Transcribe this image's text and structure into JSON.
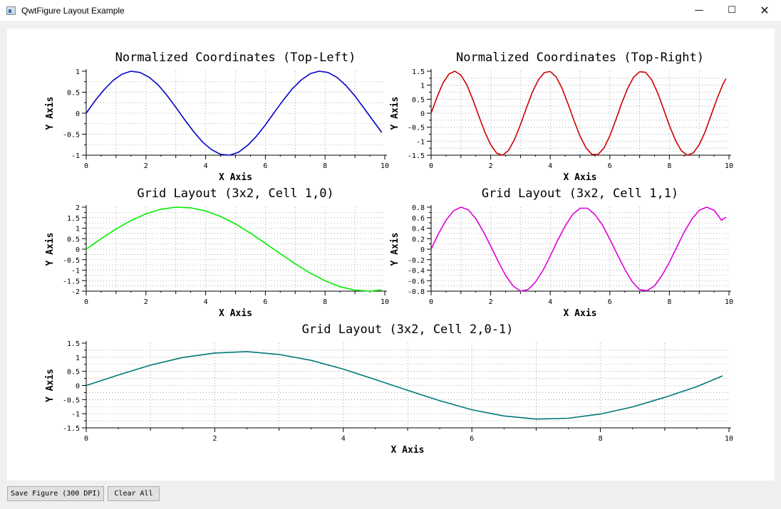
{
  "window": {
    "title": "QwtFigure Layout Example",
    "minimize_icon": "minimize-icon",
    "maximize_icon": "maximize-icon",
    "close_icon": "close-icon"
  },
  "buttons": {
    "save_label": "Save Figure (300 DPI)",
    "clear_label": "Clear All"
  },
  "chart_data": [
    {
      "type": "line",
      "title": "Normalized Coordinates (Top-Left)",
      "xlabel": "X Axis",
      "ylabel": "Y Axis",
      "xlim": [
        0,
        10
      ],
      "ylim": [
        -1,
        1
      ],
      "xticks": [
        "0",
        "2",
        "4",
        "6",
        "8",
        "10"
      ],
      "yticks": [
        "-1",
        "-0.5",
        "0",
        "0.5",
        "1"
      ],
      "grid": true,
      "color": "#0000cc",
      "series": [
        {
          "x": [
            0,
            0.3,
            0.6,
            0.9,
            1.2,
            1.5,
            1.8,
            2.1,
            2.4,
            2.7,
            3,
            3.3,
            3.6,
            3.9,
            4.2,
            4.5,
            4.8,
            5.1,
            5.4,
            5.7,
            6,
            6.3,
            6.6,
            6.9,
            7.2,
            7.5,
            7.8,
            8.1,
            8.4,
            8.7,
            9,
            9.3,
            9.6,
            9.9
          ],
          "y": [
            0,
            0.3,
            0.56,
            0.78,
            0.93,
            1,
            0.97,
            0.86,
            0.68,
            0.43,
            0.14,
            -0.16,
            -0.44,
            -0.69,
            -0.87,
            -0.98,
            -1,
            -0.93,
            -0.77,
            -0.55,
            -0.28,
            0.02,
            0.31,
            0.58,
            0.79,
            0.94,
            1,
            0.97,
            0.85,
            0.66,
            0.41,
            0.12,
            -0.17,
            -0.46
          ]
        }
      ]
    },
    {
      "type": "line",
      "title": "Normalized Coordinates (Top-Right)",
      "xlabel": "X Axis",
      "ylabel": "Y Axis",
      "xlim": [
        0,
        10
      ],
      "ylim": [
        -1.5,
        1.5
      ],
      "xticks": [
        "0",
        "2",
        "4",
        "6",
        "8",
        "10"
      ],
      "yticks": [
        "-1.5",
        "-1",
        "-0.5",
        "0",
        "0.5",
        "1",
        "1.5"
      ],
      "grid": true,
      "color": "#cc0000",
      "series": [
        {
          "x": [
            0,
            0.2,
            0.4,
            0.6,
            0.8,
            1,
            1.2,
            1.4,
            1.6,
            1.8,
            2,
            2.2,
            2.4,
            2.6,
            2.8,
            3,
            3.2,
            3.4,
            3.6,
            3.8,
            4,
            4.2,
            4.4,
            4.6,
            4.8,
            5,
            5.2,
            5.4,
            5.6,
            5.8,
            6,
            6.2,
            6.4,
            6.6,
            6.8,
            7,
            7.2,
            7.4,
            7.6,
            7.8,
            8,
            8.2,
            8.4,
            8.6,
            8.8,
            9,
            9.2,
            9.4,
            9.6,
            9.8,
            9.9
          ],
          "y": [
            0,
            0.58,
            1.08,
            1.4,
            1.5,
            1.36,
            1.01,
            0.49,
            -0.1,
            -0.66,
            -1.13,
            -1.43,
            -1.5,
            -1.33,
            -0.94,
            -0.41,
            0.19,
            0.75,
            1.19,
            1.45,
            1.49,
            1.29,
            0.88,
            0.32,
            -0.27,
            -0.82,
            -1.24,
            -1.47,
            -1.48,
            -1.25,
            -0.81,
            -0.24,
            0.36,
            0.89,
            1.29,
            1.48,
            1.46,
            1.2,
            0.74,
            0.16,
            -0.44,
            -0.96,
            -1.34,
            -1.5,
            -1.42,
            -1.13,
            -0.66,
            -0.07,
            0.52,
            1.04,
            1.23
          ]
        }
      ]
    },
    {
      "type": "line",
      "title": "Grid Layout (3x2, Cell 1,0)",
      "xlabel": "X Axis",
      "ylabel": "Y Axis",
      "xlim": [
        0,
        10
      ],
      "ylim": [
        -2,
        2
      ],
      "xticks": [
        "0",
        "2",
        "4",
        "6",
        "8",
        "10"
      ],
      "yticks": [
        "-2",
        "-1.5",
        "-1",
        "-0.5",
        "0",
        "0.5",
        "1",
        "1.5",
        "2"
      ],
      "grid": true,
      "color": "#00ee00",
      "series": [
        {
          "x": [
            0,
            0.5,
            1,
            1.5,
            2,
            2.5,
            3,
            3.5,
            4,
            4.5,
            5,
            5.5,
            6,
            6.5,
            7,
            7.5,
            8,
            8.5,
            9,
            9.5,
            9.9
          ],
          "y": [
            0,
            0.5,
            0.96,
            1.36,
            1.68,
            1.9,
            2,
            1.97,
            1.82,
            1.56,
            1.2,
            0.76,
            0.28,
            -0.22,
            -0.7,
            -1.14,
            -1.51,
            -1.79,
            -1.95,
            -2,
            -1.94
          ]
        }
      ]
    },
    {
      "type": "line",
      "title": "Grid Layout (3x2, Cell 1,1)",
      "xlabel": "X Axis",
      "ylabel": "Y Axis",
      "xlim": [
        0,
        10
      ],
      "ylim": [
        -0.8,
        0.8
      ],
      "xticks": [
        "0",
        "2",
        "4",
        "6",
        "8",
        "10"
      ],
      "yticks": [
        "-0.8",
        "-0.6",
        "-0.4",
        "-0.2",
        "0",
        "0.2",
        "0.4",
        "0.6",
        "0.8"
      ],
      "grid": true,
      "color": "#dd00dd",
      "series": [
        {
          "x": [
            0,
            0.25,
            0.5,
            0.75,
            1,
            1.25,
            1.5,
            1.75,
            2,
            2.25,
            2.5,
            2.75,
            3,
            3.25,
            3.5,
            3.75,
            4,
            4.25,
            4.5,
            4.75,
            5,
            5.25,
            5.5,
            5.75,
            6,
            6.25,
            6.5,
            6.75,
            7,
            7.25,
            7.5,
            7.75,
            8,
            8.25,
            8.5,
            8.75,
            9,
            9.25,
            9.5,
            9.75,
            9.9
          ],
          "y": [
            0,
            0.3,
            0.55,
            0.73,
            0.8,
            0.75,
            0.58,
            0.34,
            0.06,
            -0.23,
            -0.5,
            -0.7,
            -0.8,
            -0.77,
            -0.63,
            -0.41,
            -0.13,
            0.17,
            0.44,
            0.66,
            0.78,
            0.78,
            0.66,
            0.46,
            0.19,
            -0.1,
            -0.38,
            -0.62,
            -0.77,
            -0.79,
            -0.7,
            -0.5,
            -0.25,
            0.04,
            0.33,
            0.57,
            0.74,
            0.8,
            0.74,
            0.55,
            0.61
          ]
        }
      ]
    },
    {
      "type": "line",
      "title": "Grid Layout (3x2, Cell 2,0-1)",
      "xlabel": "X Axis",
      "ylabel": "Y Axis",
      "xlim": [
        0,
        10
      ],
      "ylim": [
        -1.5,
        1.5
      ],
      "xticks": [
        "0",
        "2",
        "4",
        "6",
        "8",
        "10"
      ],
      "yticks": [
        "-1.5",
        "-1",
        "-0.5",
        "0",
        "0.5",
        "1",
        "1.5"
      ],
      "grid": true,
      "color": "#007777",
      "series": [
        {
          "x": [
            0,
            0.5,
            1,
            1.5,
            2,
            2.5,
            3,
            3.5,
            4,
            4.5,
            5,
            5.5,
            6,
            6.5,
            7,
            7.5,
            8,
            8.5,
            9,
            9.5,
            9.9
          ],
          "y": [
            0,
            0.37,
            0.72,
            0.99,
            1.15,
            1.2,
            1.1,
            0.89,
            0.58,
            0.21,
            -0.17,
            -0.54,
            -0.86,
            -1.08,
            -1.19,
            -1.16,
            -1.01,
            -0.76,
            -0.42,
            -0.04,
            0.34
          ]
        }
      ]
    }
  ]
}
